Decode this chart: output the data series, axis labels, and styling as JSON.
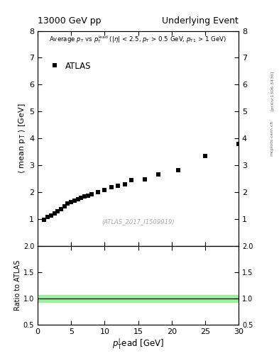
{
  "title_left": "13000 GeV pp",
  "title_right": "Underlying Event",
  "legend_label": "ATLAS",
  "watermark": "(ATLAS_2017_I1509919)",
  "arxiv_label": "[arXiv:1306.3436]",
  "mcplots_label": "mcplots.cern.ch",
  "x_data": [
    1.0,
    1.5,
    2.0,
    2.5,
    3.0,
    3.5,
    4.0,
    4.5,
    5.0,
    5.5,
    6.0,
    6.5,
    7.0,
    7.5,
    8.0,
    9.0,
    10.0,
    11.0,
    12.0,
    13.0,
    14.0,
    16.0,
    18.0,
    21.0,
    25.0,
    30.0
  ],
  "y_data": [
    0.97,
    1.07,
    1.13,
    1.2,
    1.3,
    1.38,
    1.47,
    1.57,
    1.63,
    1.68,
    1.73,
    1.78,
    1.84,
    1.88,
    1.93,
    2.0,
    2.08,
    2.18,
    2.25,
    2.28,
    2.45,
    2.48,
    2.65,
    2.82,
    3.35,
    3.8
  ],
  "xlim": [
    0,
    30
  ],
  "ylim_main": [
    0,
    8
  ],
  "ylim_ratio": [
    0.5,
    2.0
  ],
  "yticks_main": [
    1,
    2,
    3,
    4,
    5,
    6,
    7,
    8
  ],
  "yticks_ratio": [
    0.5,
    1.0,
    1.5,
    2.0
  ],
  "xticks": [
    0,
    5,
    10,
    15,
    20,
    25,
    30
  ],
  "marker_color": "#000000",
  "marker_size": 4.5,
  "ratio_line_color": "black",
  "ratio_band_color": "#90EE90",
  "background_color": "white"
}
